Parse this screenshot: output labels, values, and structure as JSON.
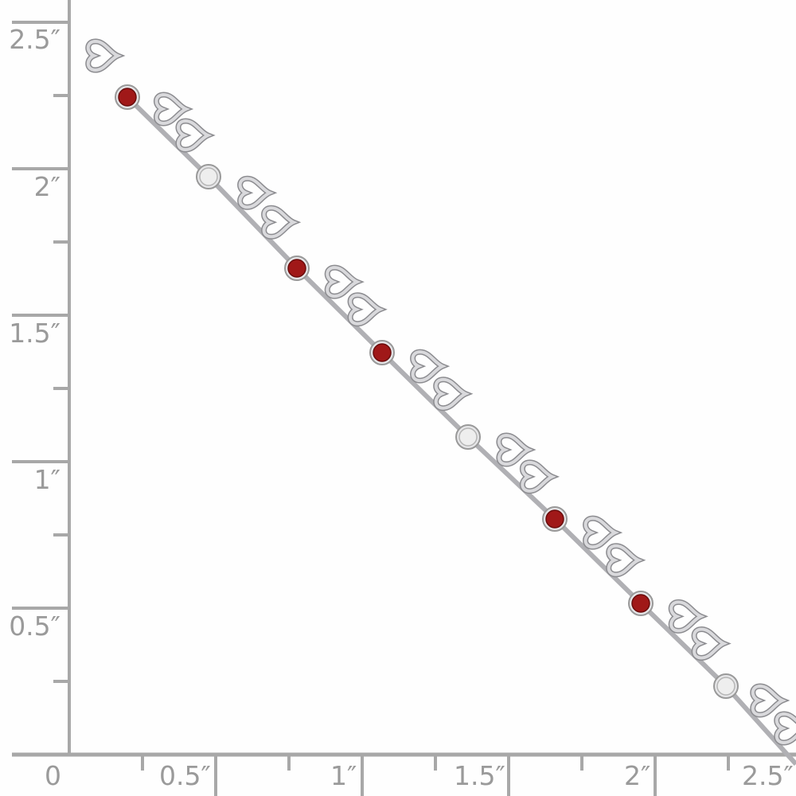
{
  "ruler": {
    "color": "#a8a8a8",
    "unit": "inch",
    "y_labels": [
      "2.5″",
      "2″",
      "1.5″",
      "1″",
      "0.5″"
    ],
    "x_labels": [
      "0",
      "0.5″",
      "1″",
      "1.5″",
      "2″",
      "2.5″"
    ]
  },
  "product": {
    "type": "heart-link bracelet",
    "metal_color": "#d9d9dc",
    "stones": [
      "garnet",
      "diamond",
      "garnet",
      "garnet",
      "diamond",
      "garnet",
      "garnet",
      "diamond"
    ],
    "garnet_color": "#a01818",
    "diamond_color": "#eeeeee"
  }
}
